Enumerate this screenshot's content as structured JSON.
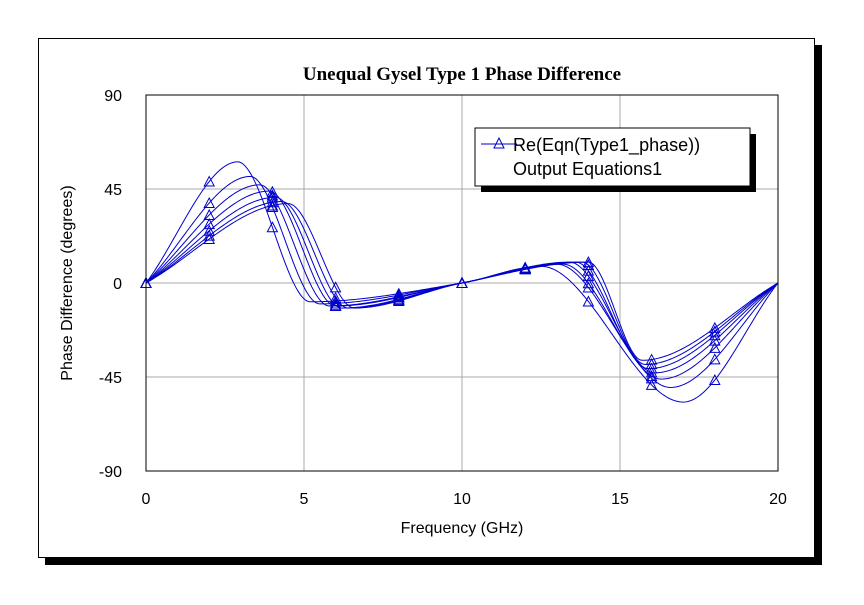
{
  "chart_data": {
    "type": "line",
    "title": "Unequal Gysel Type 1 Phase Difference",
    "xlabel": "Frequency (GHz)",
    "ylabel": "Phase Difference (degrees)",
    "xlim": [
      0,
      20
    ],
    "ylim": [
      -90,
      90
    ],
    "xticks": [
      "0",
      "5",
      "10",
      "15",
      "20"
    ],
    "yticks": [
      "90",
      "45",
      "0",
      "-45",
      "-90"
    ],
    "grid": true,
    "legend": {
      "placement": "top-right",
      "entries": [
        "Re(Eqn(Type1_phase))",
        "Output Equations1"
      ]
    },
    "line_color": "#0000cc",
    "marker": "triangle",
    "marker_x": [
      0,
      2,
      4,
      6,
      8,
      10,
      12,
      14,
      16,
      18
    ],
    "series": [
      {
        "peak1": [
          2.9,
          58
        ],
        "trough1": [
          5.2,
          -9
        ],
        "peak2": [
          12.5,
          8
        ],
        "trough2": [
          17.0,
          -57
        ]
      },
      {
        "peak1": [
          3.3,
          51
        ],
        "trough1": [
          5.5,
          -10
        ],
        "peak2": [
          13.0,
          9
        ],
        "trough2": [
          16.6,
          -50
        ]
      },
      {
        "peak1": [
          3.6,
          47
        ],
        "trough1": [
          5.8,
          -11
        ],
        "peak2": [
          13.2,
          9
        ],
        "trough2": [
          16.3,
          -46
        ]
      },
      {
        "peak1": [
          3.9,
          44
        ],
        "trough1": [
          6.0,
          -11
        ],
        "peak2": [
          13.4,
          10
        ],
        "trough2": [
          16.1,
          -43
        ]
      },
      {
        "peak1": [
          4.1,
          41
        ],
        "trough1": [
          6.2,
          -12
        ],
        "peak2": [
          13.6,
          10
        ],
        "trough2": [
          15.9,
          -41
        ]
      },
      {
        "peak1": [
          4.3,
          39
        ],
        "trough1": [
          6.4,
          -12
        ],
        "peak2": [
          13.8,
          10
        ],
        "trough2": [
          15.8,
          -39
        ]
      },
      {
        "peak1": [
          4.5,
          38
        ],
        "trough1": [
          6.6,
          -12
        ],
        "peak2": [
          14.0,
          10
        ],
        "trough2": [
          15.7,
          -37
        ]
      }
    ]
  }
}
